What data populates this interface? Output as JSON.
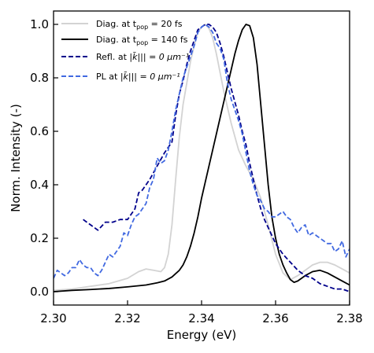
{
  "chart_data": {
    "type": "line",
    "xlabel": "Energy (eV)",
    "ylabel": "Norm. Intensity (-)",
    "xlim": [
      2.3,
      2.38
    ],
    "ylim": [
      -0.05,
      1.05
    ],
    "xticks": [
      "2.30",
      "2.32",
      "2.34",
      "2.36",
      "2.38"
    ],
    "yticks": [
      "0.0",
      "0.2",
      "0.4",
      "0.6",
      "0.8",
      "1.0"
    ],
    "xtick_values": [
      2.3,
      2.32,
      2.34,
      2.36,
      2.38
    ],
    "ytick_values": [
      0.0,
      0.2,
      0.4,
      0.6,
      0.8,
      1.0
    ],
    "legend_position": "top-left",
    "series": [
      {
        "key": "diag20",
        "legend": {
          "pre": "Diag. at t",
          "sub": "pop",
          "post": " = 20 fs"
        },
        "color": "#d3d3d3",
        "style": "solid",
        "x": [
          2.3,
          2.305,
          2.31,
          2.315,
          2.32,
          2.323,
          2.325,
          2.327,
          2.329,
          2.33,
          2.331,
          2.332,
          2.333,
          2.334,
          2.335,
          2.336,
          2.337,
          2.338,
          2.339,
          2.34,
          2.341,
          2.342,
          2.343,
          2.344,
          2.345,
          2.346,
          2.347,
          2.348,
          2.35,
          2.352,
          2.354,
          2.356,
          2.358,
          2.36,
          2.362,
          2.364,
          2.366,
          2.368,
          2.37,
          2.372,
          2.374,
          2.376,
          2.378,
          2.38
        ],
        "y": [
          0.005,
          0.01,
          0.02,
          0.03,
          0.05,
          0.075,
          0.085,
          0.08,
          0.075,
          0.09,
          0.14,
          0.25,
          0.42,
          0.58,
          0.7,
          0.78,
          0.86,
          0.92,
          0.97,
          0.99,
          1.0,
          0.985,
          0.95,
          0.89,
          0.82,
          0.75,
          0.69,
          0.63,
          0.53,
          0.47,
          0.42,
          0.35,
          0.25,
          0.14,
          0.07,
          0.045,
          0.06,
          0.08,
          0.1,
          0.11,
          0.11,
          0.1,
          0.085,
          0.07
        ]
      },
      {
        "key": "diag140",
        "legend": {
          "pre": "Diag. at t",
          "sub": "pop",
          "post": " = 140 fs"
        },
        "color": "#000000",
        "style": "solid",
        "x": [
          2.3,
          2.305,
          2.31,
          2.315,
          2.32,
          2.325,
          2.328,
          2.33,
          2.332,
          2.334,
          2.335,
          2.336,
          2.337,
          2.338,
          2.339,
          2.34,
          2.341,
          2.342,
          2.343,
          2.344,
          2.345,
          2.346,
          2.347,
          2.348,
          2.349,
          2.35,
          2.351,
          2.352,
          2.353,
          2.354,
          2.355,
          2.356,
          2.357,
          2.358,
          2.359,
          2.36,
          2.361,
          2.362,
          2.363,
          2.364,
          2.365,
          2.366,
          2.368,
          2.37,
          2.372,
          2.374,
          2.376,
          2.378,
          2.38
        ],
        "y": [
          0.0,
          0.005,
          0.008,
          0.012,
          0.018,
          0.025,
          0.033,
          0.04,
          0.055,
          0.08,
          0.1,
          0.13,
          0.17,
          0.22,
          0.28,
          0.35,
          0.41,
          0.47,
          0.53,
          0.59,
          0.65,
          0.71,
          0.77,
          0.83,
          0.89,
          0.94,
          0.98,
          1.0,
          0.995,
          0.95,
          0.85,
          0.7,
          0.55,
          0.4,
          0.28,
          0.2,
          0.14,
          0.1,
          0.07,
          0.045,
          0.035,
          0.04,
          0.06,
          0.075,
          0.08,
          0.07,
          0.055,
          0.04,
          0.025
        ]
      },
      {
        "key": "refl",
        "legend": {
          "pre": "Refl. at ",
          "math": "|k̄||| = 0 μm⁻¹"
        },
        "color": "#00008b",
        "style": "dashed",
        "x": [
          2.308,
          2.31,
          2.312,
          2.314,
          2.316,
          2.318,
          2.32,
          2.322,
          2.323,
          2.324,
          2.326,
          2.328,
          2.33,
          2.332,
          2.333,
          2.334,
          2.335,
          2.336,
          2.337,
          2.338,
          2.339,
          2.34,
          2.341,
          2.342,
          2.343,
          2.344,
          2.345,
          2.346,
          2.347,
          2.348,
          2.349,
          2.35,
          2.351,
          2.352,
          2.353,
          2.354,
          2.355,
          2.356,
          2.357,
          2.358,
          2.36,
          2.362,
          2.364,
          2.366,
          2.368,
          2.37,
          2.372,
          2.374,
          2.376,
          2.378,
          2.38
        ],
        "y": [
          0.27,
          0.25,
          0.23,
          0.26,
          0.26,
          0.27,
          0.27,
          0.31,
          0.37,
          0.38,
          0.42,
          0.47,
          0.52,
          0.56,
          0.66,
          0.74,
          0.79,
          0.85,
          0.9,
          0.94,
          0.98,
          0.99,
          1.0,
          1.0,
          0.99,
          0.97,
          0.93,
          0.88,
          0.82,
          0.76,
          0.71,
          0.66,
          0.6,
          0.55,
          0.48,
          0.42,
          0.36,
          0.31,
          0.27,
          0.24,
          0.18,
          0.14,
          0.11,
          0.08,
          0.06,
          0.05,
          0.03,
          0.02,
          0.01,
          0.01,
          0.0
        ]
      },
      {
        "key": "pl",
        "legend": {
          "pre": "PL at ",
          "math": "|k̄||| = 0 μm⁻¹"
        },
        "color": "#4169e1",
        "style": "dashed",
        "x": [
          2.3,
          2.301,
          2.302,
          2.303,
          2.304,
          2.305,
          2.306,
          2.307,
          2.308,
          2.309,
          2.31,
          2.311,
          2.312,
          2.313,
          2.314,
          2.315,
          2.316,
          2.317,
          2.318,
          2.319,
          2.32,
          2.321,
          2.322,
          2.323,
          2.324,
          2.325,
          2.326,
          2.327,
          2.328,
          2.329,
          2.33,
          2.331,
          2.332,
          2.333,
          2.334,
          2.335,
          2.336,
          2.337,
          2.338,
          2.339,
          2.34,
          2.341,
          2.342,
          2.343,
          2.344,
          2.345,
          2.346,
          2.347,
          2.348,
          2.349,
          2.35,
          2.351,
          2.352,
          2.353,
          2.354,
          2.355,
          2.356,
          2.357,
          2.358,
          2.359,
          2.36,
          2.361,
          2.362,
          2.363,
          2.364,
          2.365,
          2.366,
          2.367,
          2.368,
          2.369,
          2.37,
          2.371,
          2.372,
          2.373,
          2.374,
          2.375,
          2.376,
          2.377,
          2.378,
          2.379,
          2.38
        ],
        "y": [
          0.05,
          0.08,
          0.07,
          0.06,
          0.07,
          0.09,
          0.09,
          0.12,
          0.1,
          0.09,
          0.09,
          0.07,
          0.06,
          0.08,
          0.11,
          0.14,
          0.13,
          0.15,
          0.17,
          0.22,
          0.21,
          0.25,
          0.28,
          0.29,
          0.31,
          0.33,
          0.39,
          0.42,
          0.5,
          0.48,
          0.49,
          0.53,
          0.6,
          0.68,
          0.74,
          0.8,
          0.84,
          0.88,
          0.92,
          0.97,
          0.99,
          1.0,
          0.99,
          0.97,
          0.93,
          0.91,
          0.87,
          0.78,
          0.72,
          0.68,
          0.64,
          0.59,
          0.52,
          0.45,
          0.4,
          0.36,
          0.34,
          0.31,
          0.3,
          0.28,
          0.28,
          0.29,
          0.3,
          0.28,
          0.27,
          0.24,
          0.22,
          0.24,
          0.25,
          0.21,
          0.22,
          0.21,
          0.2,
          0.19,
          0.18,
          0.18,
          0.15,
          0.16,
          0.19,
          0.13,
          0.16
        ]
      }
    ]
  }
}
